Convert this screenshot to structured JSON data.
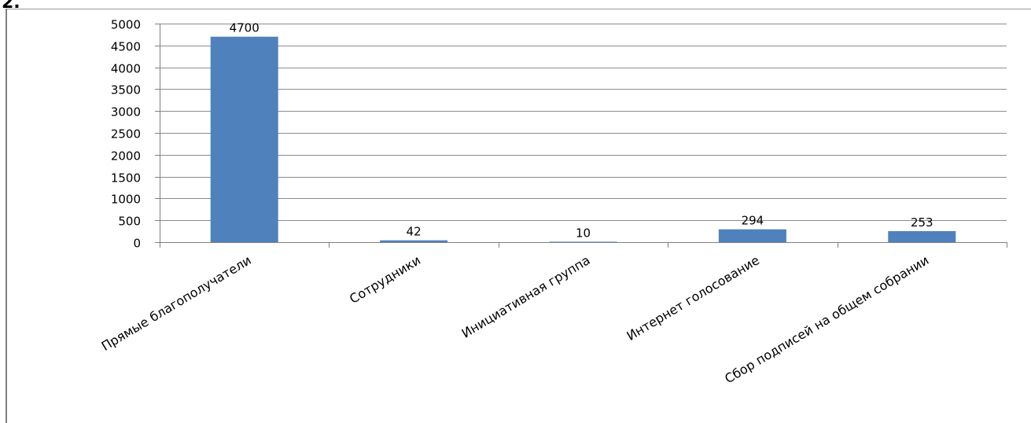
{
  "corner_label": "2.",
  "chart_data": {
    "type": "bar",
    "title": "",
    "xlabel": "",
    "ylabel": "",
    "categories": [
      "Прямые благополучатели",
      "Сотрудники",
      "Инициативная группа",
      "Интернет голосование",
      "Сбор подписей на общем собрании"
    ],
    "values": [
      4700,
      42,
      10,
      294,
      253
    ],
    "ylim": [
      0,
      5000
    ],
    "yticks": [
      0,
      500,
      1000,
      1500,
      2000,
      2500,
      3000,
      3500,
      4000,
      4500,
      5000
    ],
    "grid": true,
    "legend": "none",
    "bar_color": "#4f81bd",
    "grid_color": "#8c8c8c"
  }
}
